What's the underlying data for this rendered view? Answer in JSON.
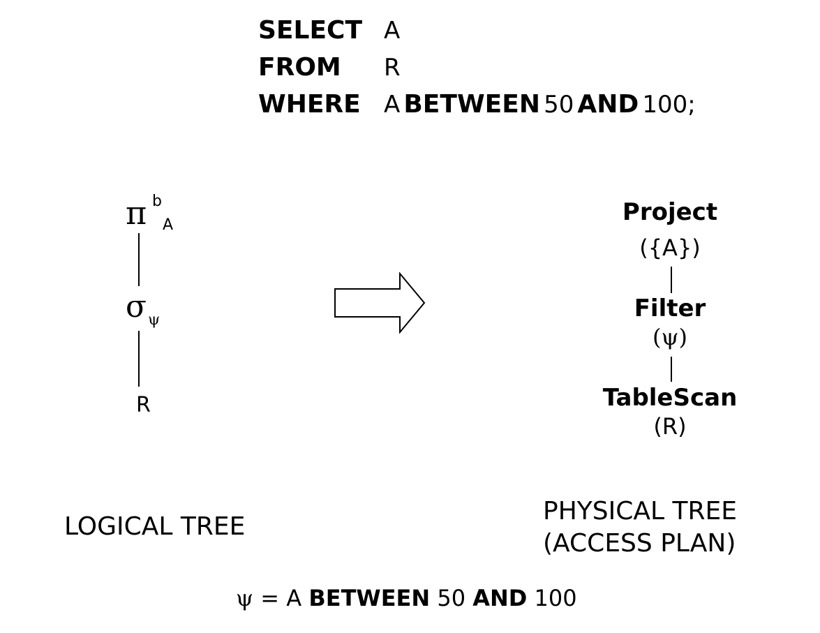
{
  "query": {
    "select_kw": "SELECT",
    "select_val": "A",
    "from_kw": "FROM",
    "from_val": "R",
    "where_kw": "WHERE",
    "where_attr": "A",
    "between_kw": "BETWEEN",
    "low": "50",
    "and_kw": "AND",
    "high": "100;"
  },
  "logical_tree": {
    "project_symbol": "π",
    "project_sup": "b",
    "project_sub": "A",
    "select_symbol": "σ",
    "select_sub": "ψ",
    "relation": "R",
    "caption": "LOGICAL TREE"
  },
  "physical_tree": {
    "project_name": "Project",
    "project_arg": "({A})",
    "filter_name": "Filter",
    "filter_arg": "(ψ)",
    "scan_name": "TableScan",
    "scan_arg": "(R)",
    "caption_line1": "PHYSICAL TREE",
    "caption_line2": "(ACCESS PLAN)"
  },
  "footer": {
    "psi": "ψ",
    "eq": "=",
    "attr": "A",
    "between_kw": "BETWEEN",
    "low": "50",
    "and_kw": "AND",
    "high": "100"
  }
}
